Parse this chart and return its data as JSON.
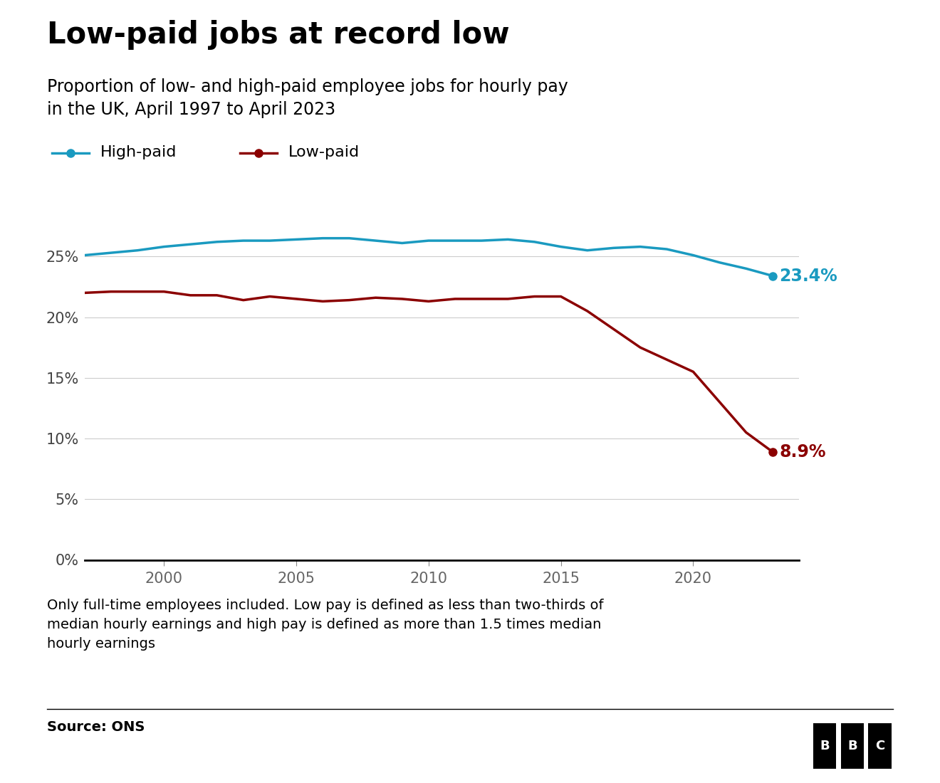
{
  "title": "Low-paid jobs at record low",
  "subtitle": "Proportion of low- and high-paid employee jobs for hourly pay\nin the UK, April 1997 to April 2023",
  "footnote": "Only full-time employees included. Low pay is defined as less than two-thirds of\nmedian hourly earnings and high pay is defined as more than 1.5 times median\nhourly earnings",
  "source": "Source: ONS",
  "high_paid_color": "#1a9ac0",
  "low_paid_color": "#8b0000",
  "high_paid_label": "High-paid",
  "low_paid_label": "Low-paid",
  "high_paid_end_label": "23.4%",
  "low_paid_end_label": "8.9%",
  "years": [
    1997,
    1998,
    1999,
    2000,
    2001,
    2002,
    2003,
    2004,
    2005,
    2006,
    2007,
    2008,
    2009,
    2010,
    2011,
    2012,
    2013,
    2014,
    2015,
    2016,
    2017,
    2018,
    2019,
    2020,
    2021,
    2022,
    2023
  ],
  "high_paid": [
    25.1,
    25.3,
    25.5,
    25.8,
    26.0,
    26.2,
    26.3,
    26.3,
    26.4,
    26.5,
    26.5,
    26.3,
    26.1,
    26.3,
    26.3,
    26.3,
    26.4,
    26.2,
    25.8,
    25.5,
    25.7,
    25.8,
    25.6,
    25.1,
    24.5,
    24.0,
    23.4
  ],
  "low_paid": [
    22.0,
    22.1,
    22.1,
    22.1,
    21.8,
    21.8,
    21.4,
    21.7,
    21.5,
    21.3,
    21.4,
    21.6,
    21.5,
    21.3,
    21.5,
    21.5,
    21.5,
    21.7,
    21.7,
    20.5,
    19.0,
    17.5,
    16.5,
    15.5,
    13.0,
    10.5,
    8.9
  ],
  "ylim": [
    0,
    30
  ],
  "yticks": [
    0,
    5,
    10,
    15,
    20,
    25
  ],
  "ytick_labels": [
    "0%",
    "5%",
    "10%",
    "15%",
    "20%",
    "25%"
  ],
  "xticks": [
    2000,
    2005,
    2010,
    2015,
    2020
  ],
  "background_color": "#ffffff",
  "grid_color": "#cccccc",
  "title_fontsize": 30,
  "subtitle_fontsize": 17,
  "footnote_fontsize": 14,
  "source_fontsize": 14,
  "tick_fontsize": 15,
  "legend_fontsize": 16,
  "label_fontsize": 17
}
